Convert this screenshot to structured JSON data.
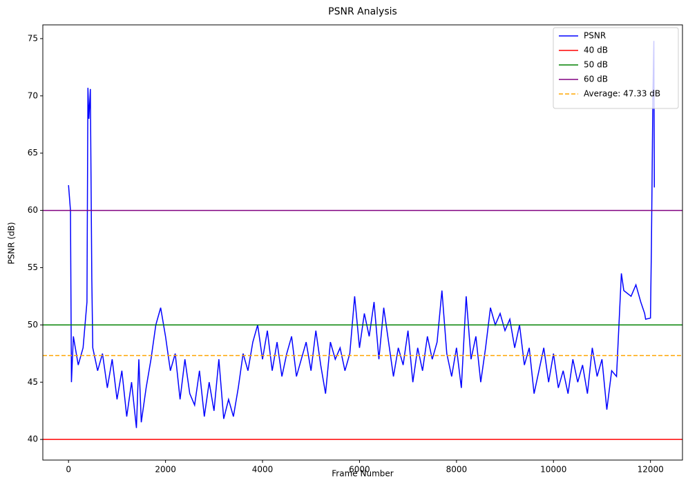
{
  "chart_data": {
    "type": "line",
    "title": "PSNR Analysis",
    "x_label": "Frame Number",
    "y_label": "PSNR (dB)",
    "x": [
      0,
      40,
      60,
      100,
      200,
      300,
      380,
      400,
      420,
      450,
      480,
      500,
      600,
      700,
      800,
      900,
      1000,
      1100,
      1200,
      1300,
      1400,
      1450,
      1500,
      1600,
      1700,
      1800,
      1900,
      2000,
      2100,
      2200,
      2300,
      2400,
      2500,
      2600,
      2700,
      2800,
      2900,
      3000,
      3100,
      3200,
      3300,
      3400,
      3500,
      3600,
      3700,
      3800,
      3900,
      4000,
      4100,
      4200,
      4300,
      4400,
      4500,
      4600,
      4700,
      4800,
      4900,
      5000,
      5100,
      5200,
      5300,
      5400,
      5500,
      5600,
      5700,
      5800,
      5900,
      6000,
      6100,
      6200,
      6300,
      6400,
      6500,
      6600,
      6700,
      6800,
      6900,
      7000,
      7100,
      7200,
      7300,
      7400,
      7500,
      7600,
      7700,
      7800,
      7900,
      8000,
      8100,
      8200,
      8300,
      8400,
      8500,
      8600,
      8700,
      8800,
      8900,
      9000,
      9100,
      9200,
      9300,
      9400,
      9500,
      9600,
      9700,
      9800,
      9900,
      10000,
      10100,
      10200,
      10300,
      10400,
      10500,
      10600,
      10700,
      10800,
      10900,
      11000,
      11100,
      11200,
      11300,
      11400,
      11450,
      11600,
      11700,
      11800,
      11880,
      11900,
      12000,
      12020,
      12050,
      12070,
      12080
    ],
    "series": [
      {
        "name": "PSNR",
        "color": "#0000ff",
        "values": [
          62.2,
          60,
          45,
          49,
          46.5,
          48,
          52,
          70.7,
          68,
          70.6,
          54,
          48,
          46,
          47.5,
          44.5,
          47,
          43.5,
          46,
          42,
          45,
          41,
          47,
          41.5,
          44.5,
          47,
          50,
          51.5,
          49,
          46,
          47.5,
          43.5,
          47,
          44,
          43,
          46,
          42,
          45,
          42.5,
          47,
          41.8,
          43.5,
          42,
          44.5,
          47.5,
          46,
          48.5,
          50,
          47,
          49.5,
          46,
          48.5,
          45.5,
          47.5,
          49,
          45.5,
          47,
          48.5,
          46,
          49.5,
          46.5,
          44,
          48.5,
          47,
          48,
          46,
          47.5,
          52.5,
          48,
          51,
          49,
          52,
          47,
          51.5,
          48.5,
          45.5,
          48,
          46.5,
          49.5,
          45,
          48,
          46,
          49,
          47,
          48.5,
          53,
          47.5,
          45.5,
          48,
          44.5,
          52.5,
          47,
          49,
          45,
          48,
          51.5,
          50,
          51,
          49.5,
          50.5,
          48,
          50,
          46.5,
          48,
          44,
          46,
          48,
          45,
          47.5,
          44.5,
          46,
          44,
          47,
          45,
          46.5,
          44,
          48,
          45.5,
          47,
          42.6,
          46,
          45.5,
          54.5,
          53,
          52.5,
          53.5,
          52,
          51,
          50.5,
          50.6,
          57,
          70,
          74.8,
          62
        ]
      }
    ],
    "hlines": [
      {
        "name": "40 dB",
        "value": 40,
        "color": "#ff0000",
        "linestyle": "solid"
      },
      {
        "name": "50 dB",
        "value": 50,
        "color": "#008000",
        "linestyle": "solid"
      },
      {
        "name": "60 dB",
        "value": 60,
        "color": "#800080",
        "linestyle": "solid"
      },
      {
        "name": "Average: 47.33 dB",
        "value": 47.33,
        "color": "#ffa500",
        "linestyle": "dashed"
      }
    ],
    "xlim": [
      -530,
      12660
    ],
    "ylim": [
      38.2,
      76.2
    ],
    "xticks": [
      0,
      2000,
      4000,
      6000,
      8000,
      10000,
      12000
    ],
    "yticks": [
      40,
      45,
      50,
      55,
      60,
      65,
      70,
      75
    ],
    "legend": "upper right"
  }
}
